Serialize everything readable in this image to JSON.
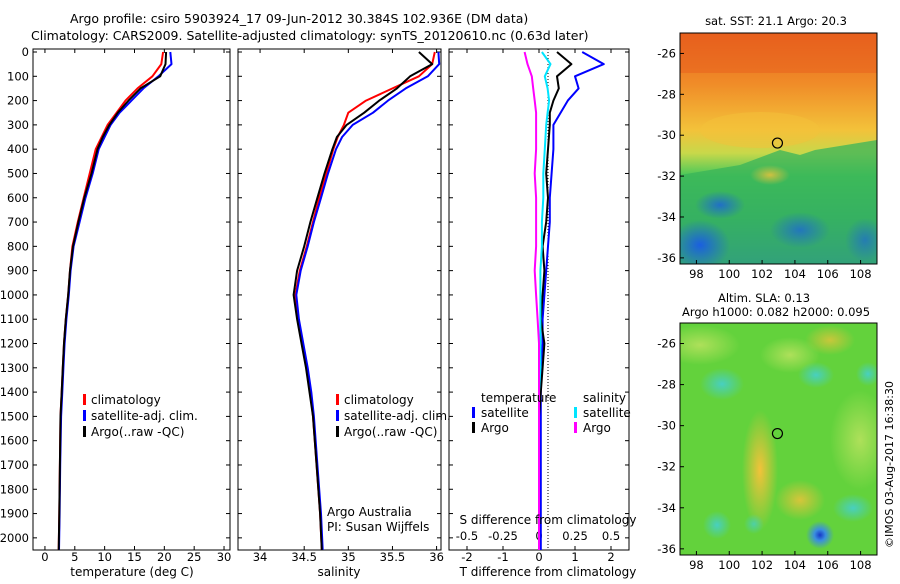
{
  "header": {
    "title": "Argo profile: csiro 5903924_17 09-Jun-2012 30.384S 102.936E (DM data)",
    "subtitle": "Climatology: CARS2009. Satellite-adjusted climatology: synTS_20120610.nc (0.63d later)"
  },
  "depth_ticks": [
    "0",
    "100",
    "200",
    "300",
    "400",
    "500",
    "600",
    "700",
    "800",
    "900",
    "1000",
    "1100",
    "1200",
    "1300",
    "1400",
    "1500",
    "1600",
    "1700",
    "1800",
    "1900",
    "2000"
  ],
  "panels": {
    "temperature": {
      "xlabel": "temperature (deg C)",
      "ticks": [
        "0",
        "5",
        "10",
        "15",
        "20",
        "25",
        "30"
      ],
      "legend": [
        "climatology",
        "satellite-adj. clim.",
        "Argo(..raw -QC)"
      ]
    },
    "salinity": {
      "xlabel": "salinity",
      "ticks": [
        "34",
        "34.5",
        "35",
        "35.5",
        "36"
      ],
      "legend": [
        "climatology",
        "satellite-adj. clim.",
        "Argo(..raw -QC)"
      ],
      "note1": "Argo Australia",
      "note2": "PI: Susan Wijffels"
    },
    "difference": {
      "xlabel": "T difference from climatology",
      "top_label": "S difference from climatology",
      "t_ticks": [
        "-2",
        "-1",
        "0",
        "1",
        "2"
      ],
      "s_ticks": [
        "-0.5",
        "-0.25",
        "0",
        "0.25",
        "0.5"
      ],
      "legend_temp_title": "temperature",
      "legend_sal_title": "salinity",
      "legend_temp": [
        "satellite",
        "Argo"
      ],
      "legend_sal": [
        "satellite",
        "Argo"
      ]
    }
  },
  "maps": {
    "sst_title": "sat. SST: 21.1  Argo: 20.3",
    "sla_title1": "Altim. SLA: 0.13",
    "sla_title2": "Argo h1000: 0.082 h2000: 0.095",
    "lat_ticks": [
      "-26",
      "-28",
      "-30",
      "-32",
      "-34",
      "-36"
    ],
    "lon_ticks": [
      "98",
      "100",
      "102",
      "104",
      "106",
      "108"
    ],
    "float_position": {
      "lon": 102.936,
      "lat": -30.384
    }
  },
  "footer_stamp": "©IMOS 03-Aug-2017 16:38:30",
  "colors": {
    "climatology": "#ff0000",
    "satellite": "#0000ff",
    "argo": "#000000",
    "salinity_satellite": "#00e5ff",
    "salinity_argo": "#ff00ff"
  },
  "chart_data": [
    {
      "type": "line",
      "title": "",
      "xlabel": "temperature (deg C)",
      "ylabel": "",
      "xlim": [
        -2,
        31
      ],
      "ylim": [
        2050,
        0
      ],
      "series": [
        {
          "name": "climatology",
          "x": [
            19.8,
            19.5,
            18,
            15.5,
            13.5,
            12,
            10.5,
            9.5,
            8.5,
            7.5,
            6.5,
            5.5,
            4.6,
            4.2,
            3.9,
            3.5,
            3.2,
            3,
            2.8,
            2.6,
            2.5,
            2.4,
            2.3
          ],
          "y": [
            0,
            50,
            100,
            150,
            200,
            250,
            300,
            350,
            400,
            500,
            600,
            700,
            800,
            900,
            1000,
            1100,
            1200,
            1300,
            1400,
            1500,
            1700,
            1900,
            2050
          ]
        },
        {
          "name": "satellite-adj. clim.",
          "x": [
            21,
            21.2,
            19,
            16.5,
            14.5,
            12.5,
            11,
            10,
            9,
            8,
            6.8,
            5.8,
            4.8,
            4.3,
            4,
            3.6,
            3.3,
            3.1,
            2.9,
            2.7,
            2.55,
            2.45,
            2.35
          ],
          "y": [
            0,
            50,
            100,
            150,
            200,
            250,
            300,
            350,
            400,
            500,
            600,
            700,
            800,
            900,
            1000,
            1100,
            1200,
            1300,
            1400,
            1500,
            1700,
            1900,
            2050
          ]
        },
        {
          "name": "Argo(..raw -QC)",
          "x": [
            20.3,
            20.2,
            19.3,
            16,
            14,
            12.2,
            10.8,
            9.7,
            8.8,
            7.8,
            6.6,
            5.6,
            4.7,
            4.2,
            3.9,
            3.5,
            3.2,
            3,
            2.8,
            2.6,
            2.5,
            2.4,
            2.3
          ],
          "y": [
            0,
            50,
            100,
            150,
            200,
            250,
            300,
            350,
            400,
            500,
            600,
            700,
            800,
            900,
            1000,
            1100,
            1200,
            1300,
            1400,
            1500,
            1700,
            1900,
            2050
          ]
        }
      ]
    },
    {
      "type": "line",
      "title": "",
      "xlabel": "salinity",
      "ylabel": "",
      "xlim": [
        33.75,
        36.05
      ],
      "ylim": [
        2050,
        0
      ],
      "series": [
        {
          "name": "climatology",
          "x": [
            35.98,
            35.95,
            35.8,
            35.5,
            35.2,
            35,
            34.95,
            34.88,
            34.83,
            34.75,
            34.67,
            34.6,
            34.53,
            34.45,
            34.4,
            34.43,
            34.48,
            34.53,
            34.57,
            34.6,
            34.64,
            34.68,
            34.7
          ],
          "y": [
            0,
            50,
            100,
            150,
            200,
            250,
            300,
            350,
            400,
            500,
            600,
            700,
            800,
            900,
            1000,
            1100,
            1200,
            1300,
            1400,
            1500,
            1700,
            1900,
            2050
          ]
        },
        {
          "name": "satellite-adj. clim.",
          "x": [
            36.02,
            36.03,
            35.9,
            35.65,
            35.45,
            35.28,
            35.05,
            34.93,
            34.86,
            34.77,
            34.69,
            34.61,
            34.54,
            34.46,
            34.41,
            34.44,
            34.49,
            34.54,
            34.58,
            34.61,
            34.65,
            34.69,
            34.71
          ],
          "y": [
            0,
            50,
            100,
            150,
            200,
            250,
            300,
            350,
            400,
            500,
            600,
            700,
            800,
            900,
            1000,
            1100,
            1200,
            1300,
            1400,
            1500,
            1700,
            1900,
            2050
          ]
        },
        {
          "name": "Argo(..raw -QC)",
          "x": [
            35.8,
            35.95,
            35.7,
            35.55,
            35.35,
            35.18,
            34.98,
            34.87,
            34.82,
            34.73,
            34.65,
            34.57,
            34.5,
            34.42,
            34.38,
            34.42,
            34.47,
            34.52,
            34.56,
            34.6,
            34.64,
            34.68,
            34.7
          ],
          "y": [
            0,
            50,
            100,
            150,
            200,
            250,
            300,
            350,
            400,
            500,
            600,
            700,
            800,
            900,
            1000,
            1100,
            1200,
            1300,
            1400,
            1500,
            1700,
            1900,
            2050
          ]
        }
      ]
    },
    {
      "type": "line",
      "title": "",
      "xlabel": "T difference from climatology",
      "ylabel": "",
      "xlim": [
        -2.5,
        2.5
      ],
      "ylim": [
        2050,
        0
      ],
      "series": [
        {
          "name": "temperature satellite",
          "x": [
            1.2,
            1.8,
            1,
            1.1,
            0.8,
            0.6,
            0.4,
            0.4,
            0.35,
            0.3,
            0.3,
            0.25,
            0.2,
            0.15,
            0.1,
            0.1,
            0.05,
            0.05,
            0.05,
            0.05,
            0.05,
            0.05
          ],
          "y": [
            0,
            50,
            100,
            150,
            200,
            250,
            300,
            400,
            500,
            600,
            700,
            800,
            900,
            1000,
            1100,
            1200,
            1300,
            1400,
            1500,
            1700,
            1900,
            2050
          ]
        },
        {
          "name": "temperature Argo",
          "x": [
            0.5,
            0.9,
            0.5,
            0.55,
            0.4,
            0.3,
            0.3,
            0.25,
            0.2,
            0.25,
            0.2,
            0.1,
            0.15,
            0.1,
            0.05,
            0.15,
            0.1,
            0.05,
            0,
            0,
            0,
            0
          ],
          "y": [
            0,
            50,
            100,
            150,
            200,
            250,
            300,
            400,
            500,
            600,
            700,
            800,
            900,
            1000,
            1100,
            1200,
            1300,
            1400,
            1500,
            1700,
            1900,
            2050
          ]
        },
        {
          "name": "salinity satellite",
          "x": [
            0.02,
            0.08,
            0.04,
            0.06,
            0.07,
            0.06,
            0.05,
            0.04,
            0.03,
            0.03,
            0.02,
            0.02,
            0.01,
            0.01,
            0.01,
            0.01,
            0.01,
            0,
            0,
            0,
            0,
            0
          ],
          "y": [
            0,
            50,
            100,
            150,
            200,
            250,
            300,
            400,
            500,
            600,
            700,
            800,
            900,
            1000,
            1100,
            1200,
            1300,
            1400,
            1500,
            1700,
            1900,
            2050
          ]
        },
        {
          "name": "salinity Argo",
          "x": [
            -0.1,
            -0.08,
            -0.05,
            -0.04,
            -0.03,
            -0.02,
            -0.02,
            -0.02,
            -0.03,
            -0.02,
            -0.02,
            -0.02,
            -0.03,
            -0.02,
            -0.01,
            0,
            0,
            0,
            0,
            0,
            0,
            0
          ],
          "y": [
            0,
            50,
            100,
            150,
            200,
            250,
            300,
            400,
            500,
            600,
            700,
            800,
            900,
            1000,
            1100,
            1200,
            1300,
            1400,
            1500,
            1700,
            1900,
            2050
          ]
        }
      ]
    }
  ]
}
